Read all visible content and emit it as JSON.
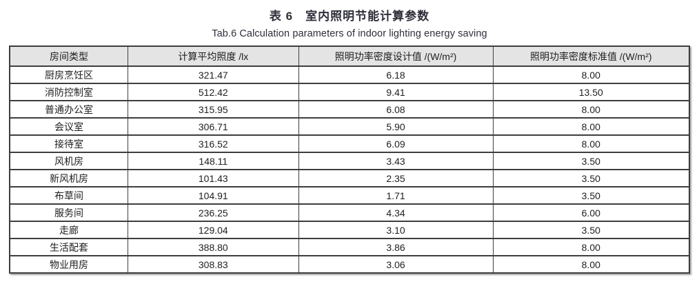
{
  "caption": {
    "title_cn": "表 6　室内照明节能计算参数",
    "title_en": "Tab.6 Calculation parameters of indoor lighting energy saving"
  },
  "table": {
    "headers": [
      "房间类型",
      "计算平均照度 /lx",
      "照明功率密度设计值 /(W/m²)",
      "照明功率密度标准值 /(W/m²)"
    ],
    "rows": [
      [
        "厨房烹饪区",
        "321.47",
        "6.18",
        "8.00"
      ],
      [
        "消防控制室",
        "512.42",
        "9.41",
        "13.50"
      ],
      [
        "普通办公室",
        "315.95",
        "6.08",
        "8.00"
      ],
      [
        "会议室",
        "306.71",
        "5.90",
        "8.00"
      ],
      [
        "接待室",
        "316.52",
        "6.09",
        "8.00"
      ],
      [
        "风机房",
        "148.11",
        "3.43",
        "3.50"
      ],
      [
        "新风机房",
        "101.43",
        "2.35",
        "3.50"
      ],
      [
        "布草间",
        "104.91",
        "1.71",
        "3.50"
      ],
      [
        "服务间",
        "236.25",
        "4.34",
        "6.00"
      ],
      [
        "走廊",
        "129.04",
        "3.10",
        "3.50"
      ],
      [
        "生活配套",
        "388.80",
        "3.86",
        "8.00"
      ],
      [
        "物业用房",
        "308.83",
        "3.06",
        "8.00"
      ]
    ]
  },
  "colors": {
    "header_background": "#e4e4e4",
    "table_border": "#3d3d3d",
    "body_text": "#1e1e1e",
    "caption_text": "#2e2e3a"
  }
}
